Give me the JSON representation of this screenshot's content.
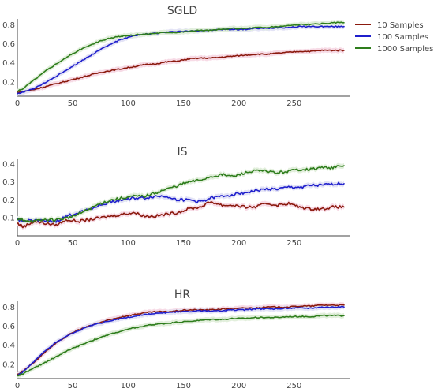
{
  "chart_data": [
    {
      "type": "line",
      "title": "SGLD",
      "xlabel": "",
      "ylabel": "",
      "xlim": [
        0,
        300
      ],
      "ylim": [
        0.05,
        0.86
      ],
      "x_ticks": [
        0,
        50,
        100,
        150,
        200,
        250
      ],
      "y_ticks": [
        0.2,
        0.4,
        0.6,
        0.8
      ],
      "y_tick_labels": [
        "0.2",
        "0.4",
        "0.6",
        "0.8"
      ],
      "grid": false,
      "legend": "top-right",
      "series": [
        {
          "name": "10 Samples",
          "color": "#8b1a0e",
          "band_color": "#f7dbe6",
          "x": [
            0,
            5,
            15,
            25,
            35,
            45,
            55,
            65,
            75,
            85,
            95,
            105,
            115,
            125,
            135,
            145,
            155,
            165,
            175,
            185,
            195,
            205,
            215,
            225,
            235,
            245,
            255,
            265,
            275,
            285,
            295
          ],
          "y": [
            0.09,
            0.1,
            0.12,
            0.15,
            0.18,
            0.21,
            0.24,
            0.27,
            0.3,
            0.32,
            0.34,
            0.36,
            0.38,
            0.39,
            0.41,
            0.42,
            0.44,
            0.45,
            0.45,
            0.46,
            0.47,
            0.48,
            0.49,
            0.49,
            0.5,
            0.51,
            0.52,
            0.52,
            0.53,
            0.53,
            0.53
          ]
        },
        {
          "name": "100 Samples",
          "color": "#1f1fcc",
          "band_color": "#e3e3f6",
          "x": [
            0,
            5,
            15,
            25,
            35,
            45,
            55,
            65,
            75,
            85,
            95,
            105,
            115,
            125,
            135,
            145,
            155,
            165,
            175,
            185,
            195,
            205,
            215,
            225,
            235,
            245,
            255,
            265,
            275,
            285,
            295
          ],
          "y": [
            0.08,
            0.09,
            0.13,
            0.19,
            0.26,
            0.33,
            0.4,
            0.47,
            0.54,
            0.6,
            0.65,
            0.68,
            0.7,
            0.71,
            0.72,
            0.73,
            0.73,
            0.74,
            0.74,
            0.75,
            0.75,
            0.75,
            0.76,
            0.76,
            0.77,
            0.77,
            0.78,
            0.78,
            0.78,
            0.78,
            0.78
          ]
        },
        {
          "name": "1000 Samples",
          "color": "#2e7d1c",
          "band_color": "#e2efdc",
          "x": [
            0,
            5,
            15,
            25,
            35,
            45,
            55,
            65,
            75,
            85,
            95,
            105,
            115,
            125,
            135,
            145,
            155,
            165,
            175,
            185,
            195,
            205,
            215,
            225,
            235,
            245,
            255,
            265,
            275,
            285,
            295
          ],
          "y": [
            0.1,
            0.13,
            0.22,
            0.31,
            0.39,
            0.46,
            0.53,
            0.58,
            0.63,
            0.66,
            0.68,
            0.69,
            0.7,
            0.71,
            0.72,
            0.72,
            0.73,
            0.74,
            0.74,
            0.75,
            0.76,
            0.76,
            0.77,
            0.77,
            0.78,
            0.79,
            0.8,
            0.8,
            0.81,
            0.82,
            0.82
          ]
        }
      ]
    },
    {
      "type": "line",
      "title": "IS",
      "xlabel": "",
      "ylabel": "",
      "xlim": [
        0,
        300
      ],
      "ylim": [
        0.0,
        0.43
      ],
      "x_ticks": [
        0,
        50,
        100,
        150,
        200,
        250
      ],
      "y_ticks": [
        0.1,
        0.2,
        0.3,
        0.4
      ],
      "y_tick_labels": [
        "0.1",
        "0.2",
        "0.3",
        "0.4"
      ],
      "grid": false,
      "series": [
        {
          "name": "10 Samples",
          "color": "#8b1a0e",
          "band_color": "#f7dbe6",
          "x": [
            0,
            5,
            15,
            25,
            35,
            45,
            55,
            65,
            75,
            85,
            95,
            105,
            115,
            125,
            135,
            145,
            155,
            165,
            175,
            185,
            195,
            205,
            215,
            225,
            235,
            245,
            255,
            265,
            275,
            285,
            295
          ],
          "y": [
            0.07,
            0.05,
            0.08,
            0.07,
            0.06,
            0.09,
            0.08,
            0.09,
            0.1,
            0.11,
            0.12,
            0.13,
            0.11,
            0.11,
            0.12,
            0.13,
            0.15,
            0.16,
            0.19,
            0.17,
            0.17,
            0.16,
            0.16,
            0.18,
            0.17,
            0.18,
            0.16,
            0.15,
            0.15,
            0.16,
            0.16
          ]
        },
        {
          "name": "100 Samples",
          "color": "#1f1fcc",
          "band_color": "#e3e3f6",
          "x": [
            0,
            5,
            15,
            25,
            35,
            45,
            55,
            65,
            75,
            85,
            95,
            105,
            115,
            125,
            135,
            145,
            155,
            165,
            175,
            185,
            195,
            205,
            215,
            225,
            235,
            245,
            255,
            265,
            275,
            285,
            295
          ],
          "y": [
            0.09,
            0.08,
            0.09,
            0.08,
            0.08,
            0.11,
            0.13,
            0.15,
            0.17,
            0.19,
            0.2,
            0.21,
            0.21,
            0.22,
            0.22,
            0.2,
            0.2,
            0.19,
            0.21,
            0.22,
            0.23,
            0.24,
            0.25,
            0.26,
            0.26,
            0.27,
            0.27,
            0.28,
            0.28,
            0.29,
            0.29
          ]
        },
        {
          "name": "1000 Samples",
          "color": "#2e7d1c",
          "band_color": "#e2efdc",
          "x": [
            0,
            5,
            15,
            25,
            35,
            45,
            55,
            65,
            75,
            85,
            95,
            105,
            115,
            125,
            135,
            145,
            155,
            165,
            175,
            185,
            195,
            205,
            215,
            225,
            235,
            245,
            255,
            265,
            275,
            285,
            295
          ],
          "y": [
            0.09,
            0.09,
            0.08,
            0.09,
            0.09,
            0.1,
            0.12,
            0.15,
            0.18,
            0.2,
            0.21,
            0.22,
            0.22,
            0.24,
            0.26,
            0.28,
            0.3,
            0.31,
            0.33,
            0.34,
            0.33,
            0.35,
            0.36,
            0.36,
            0.35,
            0.36,
            0.37,
            0.37,
            0.38,
            0.38,
            0.39
          ]
        }
      ]
    },
    {
      "type": "line",
      "title": "HR",
      "xlabel": "",
      "ylabel": "",
      "xlim": [
        0,
        300
      ],
      "ylim": [
        0.05,
        0.86
      ],
      "x_ticks": [
        0,
        50,
        100,
        150,
        200,
        250
      ],
      "y_ticks": [
        0.2,
        0.4,
        0.6,
        0.8
      ],
      "y_tick_labels": [
        "0.2",
        "0.4",
        "0.6",
        "0.8"
      ],
      "grid": false,
      "series": [
        {
          "name": "10 Samples",
          "color": "#8b1a0e",
          "band_color": "#f7dbe6",
          "x": [
            0,
            5,
            15,
            25,
            35,
            45,
            55,
            65,
            75,
            85,
            95,
            105,
            115,
            125,
            135,
            145,
            155,
            165,
            175,
            185,
            195,
            205,
            215,
            225,
            235,
            245,
            255,
            265,
            275,
            285,
            295
          ],
          "y": [
            0.09,
            0.13,
            0.22,
            0.33,
            0.42,
            0.5,
            0.56,
            0.6,
            0.64,
            0.67,
            0.7,
            0.72,
            0.74,
            0.75,
            0.75,
            0.76,
            0.77,
            0.77,
            0.77,
            0.78,
            0.78,
            0.79,
            0.79,
            0.8,
            0.8,
            0.8,
            0.81,
            0.81,
            0.82,
            0.82,
            0.82
          ]
        },
        {
          "name": "100 Samples",
          "color": "#1f1fcc",
          "band_color": "#e3e3f6",
          "x": [
            0,
            5,
            15,
            25,
            35,
            45,
            55,
            65,
            75,
            85,
            95,
            105,
            115,
            125,
            135,
            145,
            155,
            165,
            175,
            185,
            195,
            205,
            215,
            225,
            235,
            245,
            255,
            265,
            275,
            285,
            295
          ],
          "y": [
            0.08,
            0.12,
            0.23,
            0.34,
            0.43,
            0.5,
            0.55,
            0.6,
            0.63,
            0.66,
            0.68,
            0.7,
            0.72,
            0.73,
            0.74,
            0.75,
            0.75,
            0.76,
            0.76,
            0.76,
            0.77,
            0.77,
            0.78,
            0.78,
            0.78,
            0.79,
            0.79,
            0.79,
            0.8,
            0.8,
            0.8
          ]
        },
        {
          "name": "1000 Samples",
          "color": "#2e7d1c",
          "band_color": "#e2efdc",
          "x": [
            0,
            5,
            15,
            25,
            35,
            45,
            55,
            65,
            75,
            85,
            95,
            105,
            115,
            125,
            135,
            145,
            155,
            165,
            175,
            185,
            195,
            205,
            215,
            225,
            235,
            245,
            255,
            265,
            275,
            285,
            295
          ],
          "y": [
            0.08,
            0.1,
            0.16,
            0.22,
            0.28,
            0.34,
            0.39,
            0.44,
            0.48,
            0.52,
            0.55,
            0.58,
            0.6,
            0.62,
            0.63,
            0.64,
            0.65,
            0.66,
            0.67,
            0.67,
            0.68,
            0.68,
            0.69,
            0.69,
            0.69,
            0.7,
            0.7,
            0.7,
            0.71,
            0.71,
            0.71
          ]
        }
      ]
    }
  ]
}
